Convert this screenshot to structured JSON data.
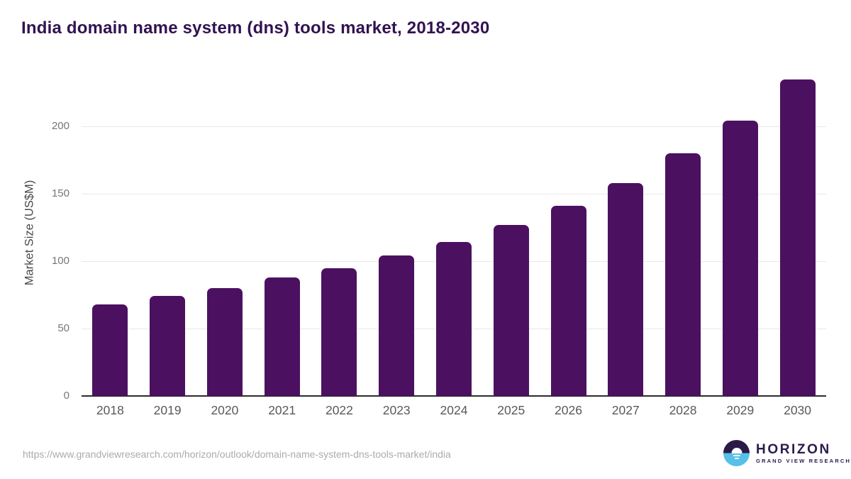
{
  "header": {
    "title": "India domain name system (dns) tools market, 2018-2030"
  },
  "chart_data": {
    "type": "bar",
    "title": "India domain name system (dns) tools market, 2018-2030",
    "categories": [
      "2018",
      "2019",
      "2020",
      "2021",
      "2022",
      "2023",
      "2024",
      "2025",
      "2026",
      "2027",
      "2028",
      "2029",
      "2030"
    ],
    "values": [
      68,
      74,
      80,
      88,
      95,
      104,
      114,
      127,
      141,
      158,
      180,
      204,
      235
    ],
    "xlabel": "",
    "ylabel": "Market Size (US$M)",
    "ylim": [
      0,
      240
    ],
    "yticks": [
      0,
      50,
      100,
      150,
      200
    ],
    "grid": "horizontal",
    "legend": false,
    "bar_color": "#4b1160"
  },
  "footer": {
    "source_url": "https://www.grandviewresearch.com/horizon/outlook/domain-name-system-dns-tools-market/india",
    "logo": {
      "name": "HORIZON",
      "subtitle": "GRAND VIEW RESEARCH"
    }
  },
  "colors": {
    "title_text": "#321251",
    "bar": "#4b1160",
    "gridline": "#e8e8e8",
    "axis_line": "#2b2b2b",
    "tick_text": "#767676",
    "x_label_text": "#595959",
    "source_text": "#ababab",
    "logo_purple": "#2d1a4e",
    "logo_blue": "#56c0e9"
  }
}
